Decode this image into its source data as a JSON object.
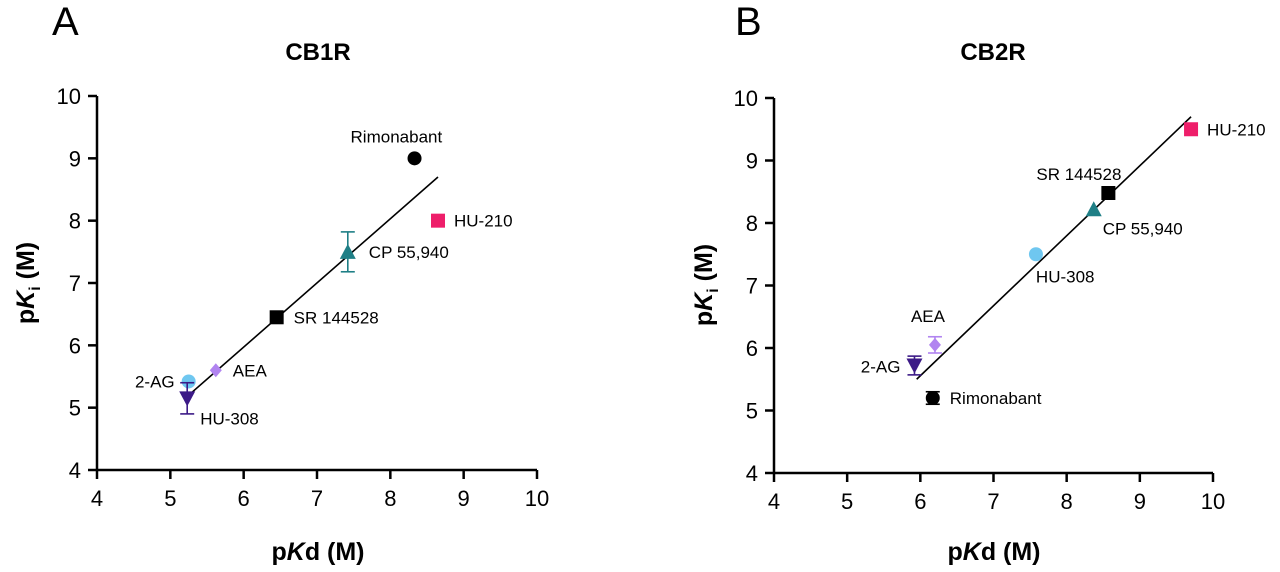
{
  "panels": [
    {
      "letter": "A"
    },
    {
      "letter": "B"
    }
  ],
  "axis_text": {
    "x_p": "p",
    "x_K": "K",
    "x_rest": "d (M)",
    "y_p": "p",
    "y_K": "K",
    "y_sub": "i",
    "y_rest": " (M)"
  },
  "chart_data": [
    {
      "type": "scatter",
      "title": "CB1R",
      "xlabel": "pKd (M)",
      "ylabel": "pKi (M)",
      "xlim": [
        4,
        10
      ],
      "ylim": [
        4,
        10
      ],
      "xticks": [
        4,
        5,
        6,
        7,
        8,
        9,
        10
      ],
      "yticks": [
        4,
        5,
        6,
        7,
        8,
        9,
        10
      ],
      "grid": false,
      "fit_line": {
        "x": [
          5.25,
          8.65
        ],
        "y": [
          5.2,
          8.7
        ]
      },
      "points": [
        {
          "label": "Rimonabant",
          "x": 8.33,
          "y": 9.0,
          "err": 0,
          "marker": "circle",
          "color": "#000000"
        },
        {
          "label": "HU-210",
          "x": 8.65,
          "y": 8.0,
          "err": 0,
          "marker": "square",
          "color": "#ee1e6a"
        },
        {
          "label": "CP 55,940",
          "x": 7.42,
          "y": 7.5,
          "err": 0.32,
          "marker": "triangle-up",
          "color": "#1f7f86"
        },
        {
          "label": "SR 144528",
          "x": 6.45,
          "y": 6.45,
          "err": 0,
          "marker": "square",
          "color": "#000000"
        },
        {
          "label": "AEA",
          "x": 5.62,
          "y": 5.6,
          "err": 0,
          "marker": "diamond",
          "color": "#b184f0"
        },
        {
          "label": "2-AG",
          "x": 5.25,
          "y": 5.42,
          "err": 0,
          "marker": "circle",
          "color": "#6fc7f0"
        },
        {
          "label": "HU-308",
          "x": 5.23,
          "y": 5.15,
          "err": 0.25,
          "marker": "triangle-down",
          "color": "#3c1a87"
        }
      ]
    },
    {
      "type": "scatter",
      "title": "CB2R",
      "xlabel": "pKd (M)",
      "ylabel": "pKi (M)",
      "xlim": [
        4,
        10
      ],
      "ylim": [
        4,
        10
      ],
      "xticks": [
        4,
        5,
        6,
        7,
        8,
        9,
        10
      ],
      "yticks": [
        4,
        5,
        6,
        7,
        8,
        9,
        10
      ],
      "grid": false,
      "fit_line": {
        "x": [
          5.95,
          9.7
        ],
        "y": [
          5.5,
          9.7
        ]
      },
      "points": [
        {
          "label": "HU-210",
          "x": 9.7,
          "y": 9.5,
          "err": 0,
          "marker": "square",
          "color": "#ee1e6a"
        },
        {
          "label": "SR 144528",
          "x": 8.57,
          "y": 8.48,
          "err": 0,
          "marker": "square",
          "color": "#000000"
        },
        {
          "label": "CP 55,940",
          "x": 8.37,
          "y": 8.22,
          "err": 0,
          "marker": "triangle-up",
          "color": "#1f7f86"
        },
        {
          "label": "HU-308",
          "x": 7.58,
          "y": 7.5,
          "err": 0,
          "marker": "circle",
          "color": "#6fc7f0"
        },
        {
          "label": "AEA",
          "x": 6.2,
          "y": 6.05,
          "err": 0.13,
          "marker": "diamond",
          "color": "#b184f0"
        },
        {
          "label": "2-AG",
          "x": 5.92,
          "y": 5.72,
          "err": 0.15,
          "marker": "triangle-down",
          "color": "#3c1a87"
        },
        {
          "label": "Rimonabant",
          "x": 6.17,
          "y": 5.2,
          "err": 0.1,
          "marker": "circle",
          "color": "#000000"
        }
      ]
    }
  ]
}
